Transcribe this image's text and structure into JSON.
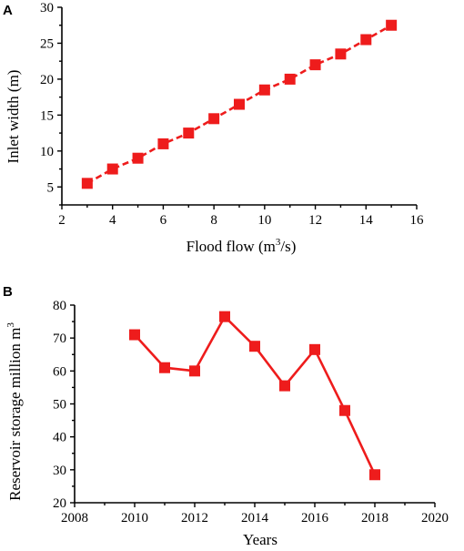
{
  "chart_data": [
    {
      "panel_label": "A",
      "type": "line",
      "line_style": "dashed",
      "marker": "square",
      "color": "#ee1c1c",
      "xlabel_text": "Flood flow (m",
      "xlabel_sup": "3",
      "xlabel_suffix": "/s)",
      "ylabel": "Inlet width (m)",
      "xlim": [
        2,
        16
      ],
      "ylim": [
        2.5,
        30
      ],
      "xticks": [
        2,
        4,
        6,
        8,
        10,
        12,
        14,
        16
      ],
      "yticks": [
        5,
        10,
        15,
        20,
        25,
        30
      ],
      "x": [
        3,
        4,
        5,
        6,
        7,
        8,
        9,
        10,
        11,
        12,
        13,
        14,
        15
      ],
      "y": [
        5.5,
        7.5,
        9,
        11,
        12.5,
        14.5,
        16.5,
        18.5,
        20,
        22,
        23.5,
        25.5,
        27.5
      ]
    },
    {
      "panel_label": "B",
      "type": "line",
      "line_style": "solid",
      "marker": "square",
      "color": "#ee1c1c",
      "xlabel_text": "Years",
      "ylabel_text": "Reservoir storage million m",
      "ylabel_sup": "3",
      "xlim": [
        2008,
        2020
      ],
      "ylim": [
        20,
        80
      ],
      "xticks": [
        2008,
        2010,
        2012,
        2014,
        2016,
        2018,
        2020
      ],
      "yticks": [
        20,
        30,
        40,
        50,
        60,
        70,
        80
      ],
      "x": [
        2010,
        2011,
        2012,
        2013,
        2014,
        2015,
        2016,
        2017,
        2018
      ],
      "y": [
        71,
        61,
        60,
        76.5,
        67.5,
        55.5,
        66.5,
        48,
        28.5
      ]
    }
  ]
}
